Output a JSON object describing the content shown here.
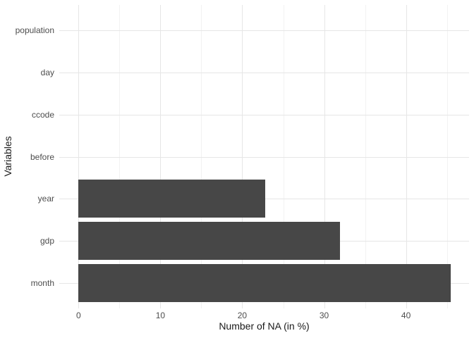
{
  "chart_data": {
    "type": "bar",
    "orientation": "horizontal",
    "title": "",
    "xlabel": "Number of NA (in %)",
    "ylabel": "Variables",
    "categories_top_to_bottom": [
      "population",
      "day",
      "ccode",
      "before",
      "year",
      "gdp",
      "month"
    ],
    "values": [
      0,
      0,
      0,
      0,
      22.8,
      31.9,
      45.5
    ],
    "x_major_ticks": [
      0,
      10,
      20,
      30,
      40
    ],
    "x_minor_ticks": [
      5,
      15,
      25,
      35,
      45
    ],
    "xlim": [
      -2.35,
      47.7
    ],
    "bar_width_fraction": 0.9,
    "grid": "major-and-minor-x, major-y-only",
    "legend": false,
    "colors": {
      "bar_fill": "#474747",
      "background": "#ffffff",
      "major_grid": "#e6e6e6",
      "minor_grid": "#f2f2f2",
      "tick_label": "#4d4d4d",
      "axis_title": "#1a1a1a"
    }
  }
}
